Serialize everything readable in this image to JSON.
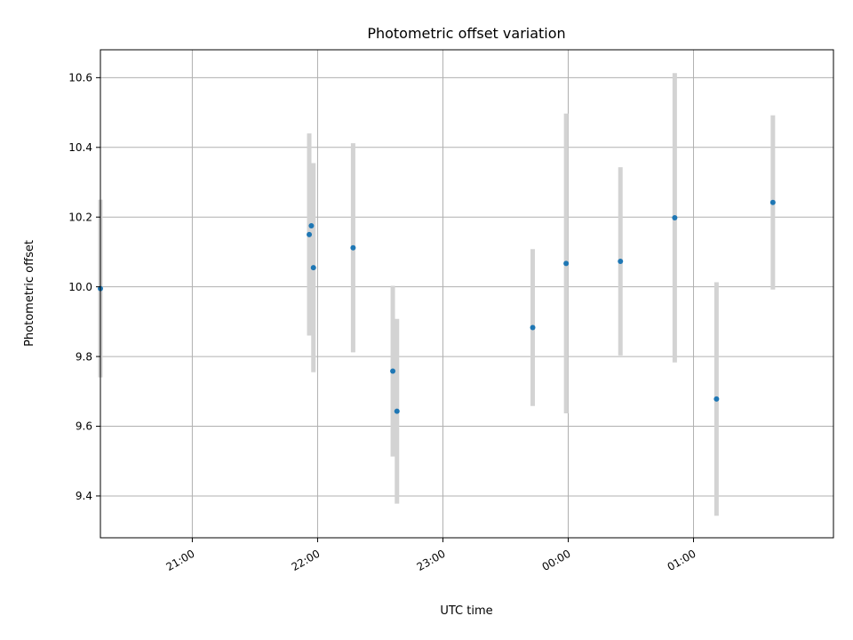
{
  "chart_data": {
    "type": "scatter",
    "title": "Photometric offset variation",
    "xlabel": "UTC time",
    "ylabel": "Photometric offset",
    "x_axis": {
      "scale": "time",
      "range": [
        "20:16",
        "02:07"
      ],
      "ticks": [
        "21:00",
        "22:00",
        "23:00",
        "00:00",
        "01:00"
      ]
    },
    "y_axis": {
      "range": [
        9.28,
        10.68
      ],
      "ticks": [
        "9.4",
        "9.6",
        "9.8",
        "10.0",
        "10.2",
        "10.4",
        "10.6"
      ]
    },
    "grid": true,
    "colors": {
      "marker": "#1f77b4",
      "errorbar": "#d3d3d3"
    },
    "points": [
      {
        "time": "20:16",
        "y": 9.995,
        "err": 0.255
      },
      {
        "time": "21:56",
        "y": 10.15,
        "err": 0.29
      },
      {
        "time": "21:57",
        "y": 10.175,
        "err": 0.18
      },
      {
        "time": "21:58",
        "y": 10.055,
        "err": 0.3
      },
      {
        "time": "22:17",
        "y": 10.112,
        "err": 0.3
      },
      {
        "time": "22:36",
        "y": 9.758,
        "err": 0.245
      },
      {
        "time": "22:38",
        "y": 9.643,
        "err": 0.265
      },
      {
        "time": "23:43",
        "y": 9.883,
        "err": 0.225
      },
      {
        "time": "23:59",
        "y": 10.067,
        "err": 0.43
      },
      {
        "time": "00:25",
        "y": 10.073,
        "err": 0.27
      },
      {
        "time": "00:51",
        "y": 10.198,
        "err": 0.415
      },
      {
        "time": "01:11",
        "y": 9.678,
        "err": 0.335
      },
      {
        "time": "01:38",
        "y": 10.242,
        "err": 0.25
      }
    ]
  }
}
